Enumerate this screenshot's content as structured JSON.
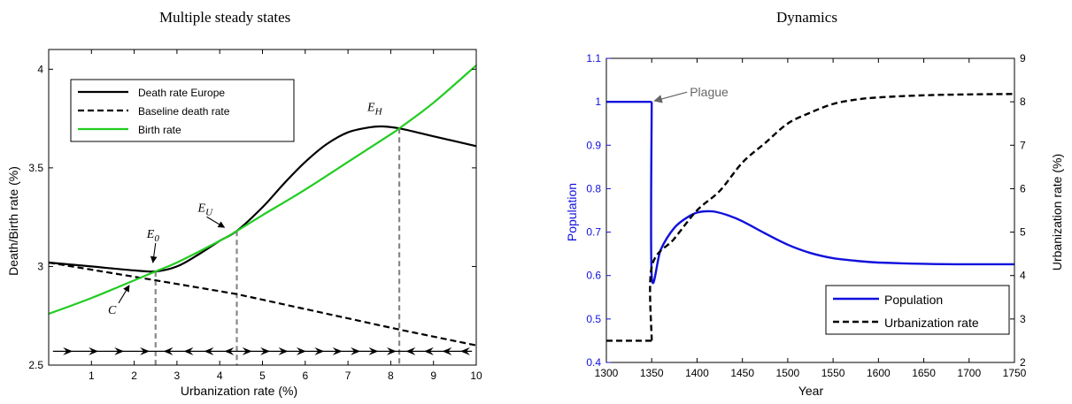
{
  "chart_data": [
    {
      "type": "line",
      "title": "Multiple steady states",
      "xlabel": "Urbanization rate (%)",
      "ylabel": "Death/Birth rate (%)",
      "xlim": [
        0,
        10
      ],
      "ylim": [
        2.5,
        4.1
      ],
      "xticks": [
        "1",
        "2",
        "3",
        "4",
        "5",
        "6",
        "7",
        "8",
        "9",
        "10"
      ],
      "yticks": [
        "2.5",
        "3",
        "3.5",
        "4"
      ],
      "grid": false,
      "legend_position": "top-left",
      "series": [
        {
          "name": "Death rate Europe",
          "style": "solid",
          "color": "#000000",
          "x": [
            0,
            1,
            2,
            2.5,
            3,
            3.5,
            4,
            4.4,
            5,
            5.5,
            6,
            6.5,
            7,
            7.5,
            7.8,
            8.2,
            9,
            10
          ],
          "y": [
            3.02,
            3.0,
            2.98,
            2.975,
            3.0,
            3.06,
            3.13,
            3.18,
            3.3,
            3.42,
            3.53,
            3.62,
            3.68,
            3.705,
            3.71,
            3.7,
            3.66,
            3.61
          ]
        },
        {
          "name": "Baseline death rate",
          "style": "dashed",
          "color": "#000000",
          "x": [
            0,
            2.5,
            4.4,
            8.2,
            10
          ],
          "y": [
            3.02,
            2.93,
            2.86,
            2.68,
            2.6
          ]
        },
        {
          "name": "Birth rate",
          "style": "solid",
          "color": "#22cc22",
          "x": [
            0,
            1,
            2,
            2.5,
            3,
            4,
            4.4,
            5,
            6,
            7,
            8,
            8.2,
            9,
            10
          ],
          "y": [
            2.76,
            2.84,
            2.93,
            2.975,
            3.02,
            3.13,
            3.18,
            3.26,
            3.39,
            3.53,
            3.67,
            3.7,
            3.83,
            4.02
          ]
        }
      ],
      "annotations": [
        {
          "text": "E",
          "sub": "0",
          "x": 2.5,
          "y": 2.975
        },
        {
          "text": "E",
          "sub": "U",
          "x": 4.4,
          "y": 3.18
        },
        {
          "text": "E",
          "sub": "H",
          "x": 8.2,
          "y": 3.7
        },
        {
          "text": "C",
          "sub": "",
          "x": 2.05,
          "y": 2.94
        }
      ],
      "steady_state_markers": [
        2.5,
        4.4,
        8.2
      ],
      "flow_arrow_y": 2.57,
      "flow_arrows": [
        {
          "from": 0.1,
          "to": 2.5,
          "direction": "right",
          "count": 4
        },
        {
          "from": 2.5,
          "to": 4.4,
          "direction": "left",
          "count": 4
        },
        {
          "from": 4.4,
          "to": 8.2,
          "direction": "right",
          "count": 9
        },
        {
          "from": 8.2,
          "to": 9.9,
          "direction": "left",
          "count": 4
        }
      ]
    },
    {
      "type": "line",
      "title": "Dynamics",
      "xlabel": "Year",
      "ylabel": "Population",
      "ylabel_right": "Urbanization rate (%)",
      "xlim": [
        1300,
        1750
      ],
      "ylim": [
        0.4,
        1.1
      ],
      "ylim_right": [
        2,
        9
      ],
      "xticks": [
        "1300",
        "1350",
        "1400",
        "1450",
        "1500",
        "1550",
        "1600",
        "1650",
        "1700",
        "1750"
      ],
      "yticks": [
        "0.4",
        "0.5",
        "0.6",
        "0.7",
        "0.8",
        "0.9",
        "1",
        "1.1"
      ],
      "yticks_right": [
        "2",
        "3",
        "4",
        "5",
        "6",
        "7",
        "8",
        "9"
      ],
      "grid": false,
      "legend_position": "bottom-right",
      "series": [
        {
          "name": "Population",
          "style": "solid",
          "color": "#1010dd",
          "axis": "left",
          "x": [
            1300,
            1350,
            1350,
            1360,
            1375,
            1390,
            1400,
            1410,
            1420,
            1435,
            1450,
            1475,
            1500,
            1525,
            1550,
            1575,
            1600,
            1650,
            1700,
            1750
          ],
          "y": [
            1.0,
            1.0,
            0.6,
            0.66,
            0.71,
            0.735,
            0.745,
            0.748,
            0.747,
            0.738,
            0.725,
            0.697,
            0.671,
            0.652,
            0.64,
            0.634,
            0.63,
            0.627,
            0.626,
            0.626
          ]
        },
        {
          "name": "Urbanization rate",
          "style": "dashed",
          "color": "#000000",
          "axis": "right",
          "x": [
            1300,
            1350,
            1350,
            1375,
            1400,
            1425,
            1450,
            1475,
            1500,
            1525,
            1550,
            1575,
            1600,
            1650,
            1700,
            1750
          ],
          "y": [
            2.5,
            2.5,
            4.2,
            4.85,
            5.5,
            5.95,
            6.6,
            7.05,
            7.5,
            7.75,
            7.95,
            8.05,
            8.1,
            8.15,
            8.17,
            8.18
          ]
        }
      ],
      "annotations": [
        {
          "text": "Plague",
          "x": 1350,
          "y": 1.0
        }
      ]
    }
  ]
}
